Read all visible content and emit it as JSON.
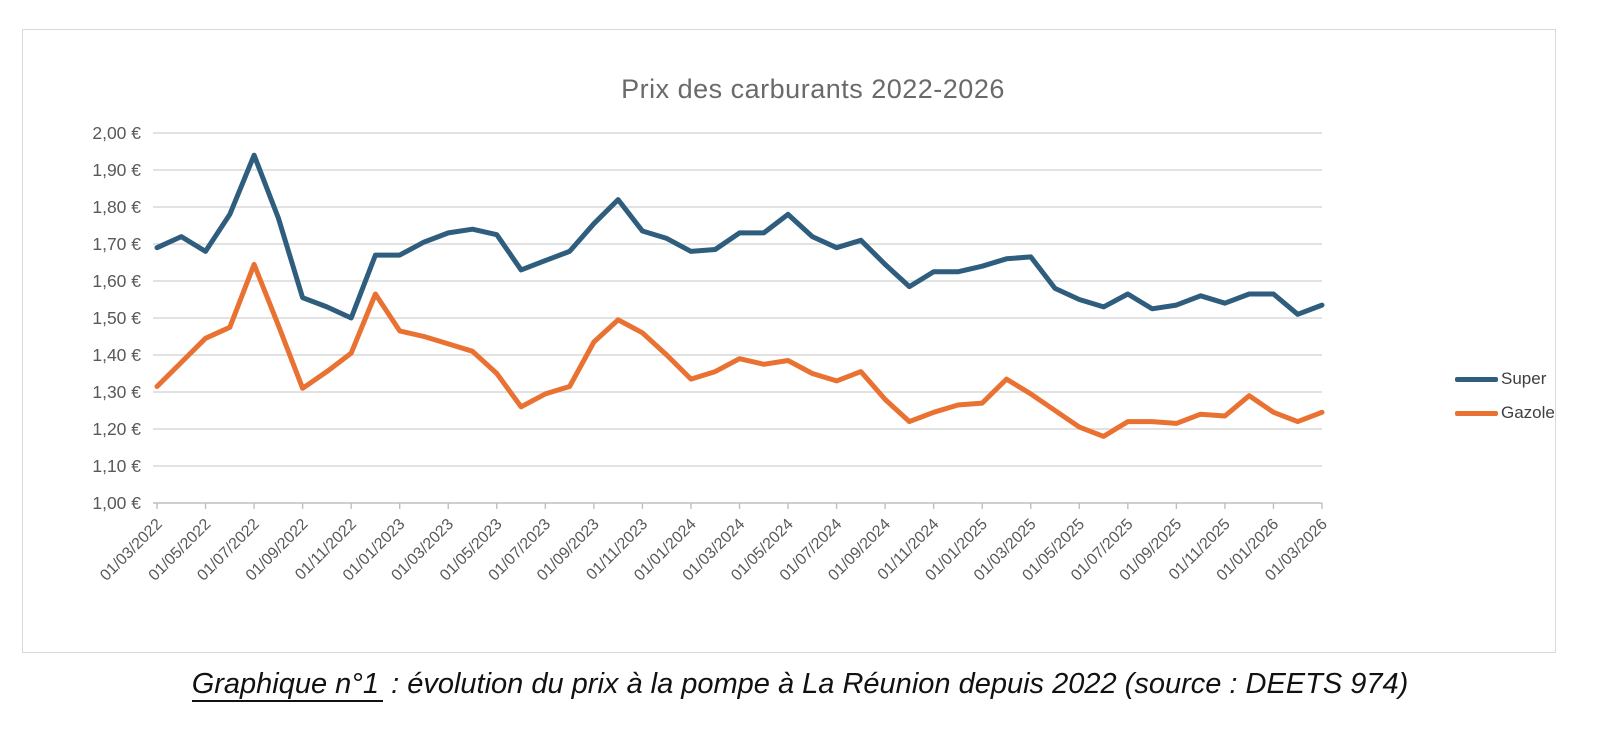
{
  "chart_data": {
    "type": "line",
    "title": "Prix des carburants 2022-2026",
    "xlabel": "",
    "ylabel": "",
    "ylim": [
      1.0,
      2.0
    ],
    "y_step": 0.1,
    "grid": "horizontal",
    "legend_position": "right",
    "y_tick_labels": [
      "2,00 €",
      "1,90 €",
      "1,80 €",
      "1,70 €",
      "1,60 €",
      "1,50 €",
      "1,40 €",
      "1,30 €",
      "1,20 €",
      "1,10 €",
      "1,00 €"
    ],
    "x_tick_labels": [
      "01/03/2022",
      "01/05/2022",
      "01/07/2022",
      "01/09/2022",
      "01/11/2022",
      "01/01/2023",
      "01/03/2023",
      "01/05/2023",
      "01/07/2023",
      "01/09/2023",
      "01/11/2023",
      "01/01/2024",
      "01/03/2024",
      "01/05/2024",
      "01/07/2024",
      "01/09/2024",
      "01/11/2024",
      "01/01/2025",
      "01/03/2025",
      "01/05/2025",
      "01/07/2025",
      "01/09/2025",
      "01/11/2025",
      "01/01/2026",
      "01/03/2026"
    ],
    "months": [
      "01/03/2022",
      "01/04/2022",
      "01/05/2022",
      "01/06/2022",
      "01/07/2022",
      "01/08/2022",
      "01/09/2022",
      "01/10/2022",
      "01/11/2022",
      "01/12/2022",
      "01/01/2023",
      "01/02/2023",
      "01/03/2023",
      "01/04/2023",
      "01/05/2023",
      "01/06/2023",
      "01/07/2023",
      "01/08/2023",
      "01/09/2023",
      "01/10/2023",
      "01/11/2023",
      "01/12/2023",
      "01/01/2024",
      "01/02/2024",
      "01/03/2024",
      "01/04/2024",
      "01/05/2024",
      "01/06/2024",
      "01/07/2024",
      "01/08/2024",
      "01/09/2024",
      "01/10/2024",
      "01/11/2024",
      "01/12/2024",
      "01/01/2025",
      "01/02/2025",
      "01/03/2025",
      "01/04/2025",
      "01/05/2025",
      "01/06/2025",
      "01/07/2025",
      "01/08/2025",
      "01/09/2025",
      "01/10/2025",
      "01/11/2025",
      "01/12/2025",
      "01/01/2026",
      "01/02/2026",
      "01/03/2026"
    ],
    "series": [
      {
        "name": "Super",
        "color": "#2E5D7D",
        "values": [
          1.69,
          1.72,
          1.68,
          1.78,
          1.94,
          1.77,
          1.555,
          1.53,
          1.5,
          1.67,
          1.67,
          1.705,
          1.73,
          1.74,
          1.725,
          1.63,
          1.655,
          1.68,
          1.755,
          1.82,
          1.735,
          1.715,
          1.68,
          1.685,
          1.73,
          1.73,
          1.78,
          1.72,
          1.69,
          1.71,
          1.645,
          1.585,
          1.625,
          1.625,
          1.64,
          1.66,
          1.665,
          1.58,
          1.55,
          1.53,
          1.565,
          1.525,
          1.535,
          1.56,
          1.54,
          1.565,
          1.565,
          1.51,
          1.535
        ]
      },
      {
        "name": "Gazole",
        "color": "#E97132",
        "values": [
          1.315,
          1.38,
          1.445,
          1.475,
          1.645,
          1.48,
          1.31,
          1.355,
          1.405,
          1.565,
          1.465,
          1.45,
          1.43,
          1.41,
          1.35,
          1.26,
          1.295,
          1.315,
          1.435,
          1.495,
          1.46,
          1.4,
          1.335,
          1.355,
          1.39,
          1.375,
          1.385,
          1.35,
          1.33,
          1.355,
          1.28,
          1.22,
          1.245,
          1.265,
          1.27,
          1.335,
          1.295,
          1.25,
          1.205,
          1.18,
          1.22,
          1.22,
          1.215,
          1.24,
          1.235,
          1.29,
          1.245,
          1.22,
          1.245
        ]
      }
    ]
  },
  "caption": {
    "lead": "Graphique n°1",
    "rest": " : évolution du prix à la pompe à La Réunion depuis 2022 (source : DEETS 974)"
  }
}
